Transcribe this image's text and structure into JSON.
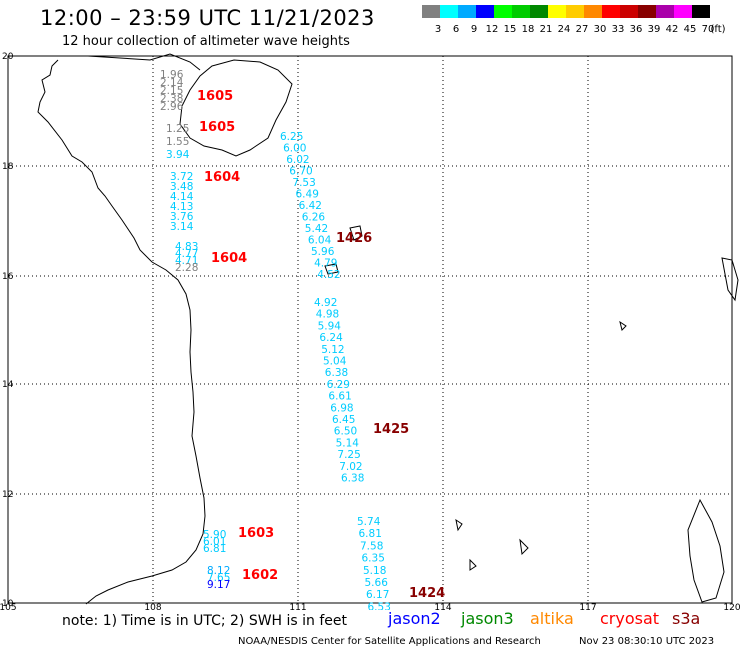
{
  "header": {
    "title": "12:00 – 23:59 UTC 11/21/2023",
    "subtitle": "12 hour collection of altimeter wave heights"
  },
  "color_scale": {
    "labels": [
      "3",
      "6",
      "9",
      "12",
      "15",
      "18",
      "21",
      "24",
      "27",
      "30",
      "33",
      "36",
      "39",
      "42",
      "45",
      "70",
      "(ft)"
    ],
    "colors": [
      "#808080",
      "#00ffff",
      "#00aaff",
      "#0000ff",
      "#00ff00",
      "#00cc00",
      "#008800",
      "#ffff00",
      "#ffcc00",
      "#ff8800",
      "#ff0000",
      "#cc0000",
      "#880000",
      "#aa00aa",
      "#ff00ff",
      "#000000"
    ]
  },
  "map": {
    "lon_labels": [
      "105",
      "108",
      "111",
      "114",
      "117",
      "120"
    ],
    "lat_labels": [
      "20",
      "18",
      "16",
      "14",
      "12",
      "10"
    ],
    "tracks": [
      {
        "pass": "1605",
        "color": "#ff0000",
        "labels": [
          {
            "v": "1.96",
            "c": "#808080"
          },
          {
            "v": "2.14",
            "c": "#808080"
          },
          {
            "v": "2.15",
            "c": "#808080"
          },
          {
            "v": "2.38",
            "c": "#808080"
          },
          {
            "v": "2.96",
            "c": "#808080"
          }
        ]
      },
      {
        "pass": "1605",
        "color": "#ff0000",
        "labels": [
          {
            "v": "1.25",
            "c": "#808080"
          },
          {
            "v": "1.55",
            "c": "#808080"
          },
          {
            "v": "3.94",
            "c": "#00ccff"
          }
        ]
      },
      {
        "pass": "1604",
        "color": "#ff0000",
        "labels": [
          {
            "v": "3.72",
            "c": "#00ccff"
          },
          {
            "v": "3.48",
            "c": "#00ccff"
          },
          {
            "v": "4.14",
            "c": "#00ccff"
          },
          {
            "v": "4.13",
            "c": "#00ccff"
          },
          {
            "v": "3.76",
            "c": "#00ccff"
          },
          {
            "v": "3.14",
            "c": "#00ccff"
          }
        ]
      },
      {
        "pass": "1604",
        "color": "#ff0000",
        "labels": [
          {
            "v": "4.83",
            "c": "#00ccff"
          },
          {
            "v": "4.77",
            "c": "#00ccff"
          },
          {
            "v": "4.71",
            "c": "#00ccff"
          },
          {
            "v": "2.28",
            "c": "#808080"
          }
        ]
      },
      {
        "pass": "1426",
        "color": "#880000",
        "labels": [
          {
            "v": "6.25"
          },
          {
            "v": "6.00"
          },
          {
            "v": "6.02"
          },
          {
            "v": "6.70"
          },
          {
            "v": "7.53"
          },
          {
            "v": "6.49"
          },
          {
            "v": "6.42"
          },
          {
            "v": "6.26"
          },
          {
            "v": "5.42"
          },
          {
            "v": "6.04"
          },
          {
            "v": "5.96"
          },
          {
            "v": "4.79"
          },
          {
            "v": "4.52"
          }
        ]
      },
      {
        "pass": "1425",
        "color": "#880000",
        "labels": [
          {
            "v": "4.92"
          },
          {
            "v": "4.98"
          },
          {
            "v": "5.94"
          },
          {
            "v": "6.24"
          },
          {
            "v": "5.12"
          },
          {
            "v": "5.04"
          },
          {
            "v": "6.38"
          },
          {
            "v": "6.29"
          },
          {
            "v": "6.61"
          },
          {
            "v": "6.98"
          },
          {
            "v": "6.45"
          },
          {
            "v": "6.50"
          },
          {
            "v": "5.14"
          },
          {
            "v": "7.25"
          },
          {
            "v": "7.02"
          },
          {
            "v": "6.38"
          }
        ]
      },
      {
        "pass": "1424",
        "color": "#880000",
        "labels": [
          {
            "v": "5.74"
          },
          {
            "v": "6.81"
          },
          {
            "v": "7.58"
          },
          {
            "v": "6.35"
          },
          {
            "v": "5.18"
          },
          {
            "v": "5.66"
          },
          {
            "v": "6.17"
          },
          {
            "v": "6.53"
          }
        ]
      },
      {
        "pass": "1603",
        "color": "#ff0000",
        "labels": [
          {
            "v": "5.90",
            "c": "#00ccff"
          },
          {
            "v": "6.01",
            "c": "#00ccff"
          },
          {
            "v": "6.81",
            "c": "#00ccff"
          }
        ]
      },
      {
        "pass": "1602",
        "color": "#ff0000",
        "labels": [
          {
            "v": "8.12",
            "c": "#00aaff"
          },
          {
            "v": "7.65",
            "c": "#00ccff"
          },
          {
            "v": "9.17",
            "c": "#0000ff"
          }
        ]
      }
    ]
  },
  "legend": {
    "note": "note:  1) Time is in UTC;  2) SWH is in feet",
    "satellites": [
      {
        "name": "jason2",
        "color": "#0000ff"
      },
      {
        "name": "jason3",
        "color": "#008800"
      },
      {
        "name": "altika",
        "color": "#ff8800"
      },
      {
        "name": "cryosat",
        "color": "#ff0000"
      },
      {
        "name": "s3a",
        "color": "#880000"
      }
    ]
  },
  "footer": {
    "credit": "NOAA/NESDIS Center for Satellite Applications and Research",
    "timestamp": "Nov 23 08:30:10 UTC 2023"
  }
}
